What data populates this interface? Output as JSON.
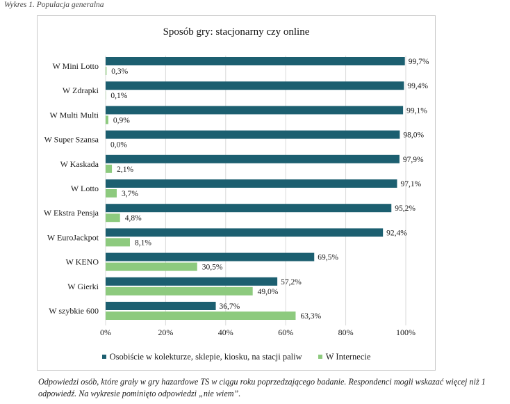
{
  "caption": "Wykres 1. Populacja generalna",
  "colors": {
    "series1": "#1c5f70",
    "series2": "#8dca7e",
    "grid": "#d9d9d9"
  },
  "chart_data": {
    "type": "bar",
    "orientation": "horizontal",
    "title": "Sposób gry: stacjonarny czy online",
    "categories": [
      "W Mini Lotto",
      "W Zdrapki",
      "W Multi Multi",
      "W Super Szansa",
      "W Kaskada",
      "W Lotto",
      "W Ekstra Pensja",
      "W EuroJackpot",
      "W KENO",
      "W Gierki",
      "W szybkie 600"
    ],
    "series": [
      {
        "name": "Osobiście w kolekturze, sklepie, kiosku, na stacji paliw",
        "values": [
          99.7,
          99.4,
          99.1,
          98.0,
          97.9,
          97.1,
          95.2,
          92.4,
          69.5,
          57.2,
          36.7
        ],
        "labels": [
          "99,7%",
          "99,4%",
          "99,1%",
          "98,0%",
          "97,9%",
          "97,1%",
          "95,2%",
          "92,4%",
          "69,5%",
          "57,2%",
          "36,7%"
        ]
      },
      {
        "name": "W Internecie",
        "values": [
          0.3,
          0.1,
          0.9,
          0.0,
          2.1,
          3.7,
          4.8,
          8.1,
          30.5,
          49.0,
          63.3
        ],
        "labels": [
          "0,3%",
          "0,1%",
          "0,9%",
          "0,0%",
          "2,1%",
          "3,7%",
          "4,8%",
          "8,1%",
          "30,5%",
          "49,0%",
          "63,3%"
        ]
      }
    ],
    "xlim": [
      0,
      100
    ],
    "xticks": [
      0,
      20,
      40,
      60,
      80,
      100
    ],
    "xtick_labels": [
      "0%",
      "20%",
      "40%",
      "60%",
      "80%",
      "100%"
    ],
    "grid": true,
    "legend_position": "bottom"
  },
  "footnote": "Odpowiedzi osób, które grały w gry hazardowe TS w ciągu roku poprzedzającego badanie. Respondenci mogli wskazać więcej niż 1 odpowiedź. Na wykresie pominięto odpowiedzi „nie wiem”."
}
